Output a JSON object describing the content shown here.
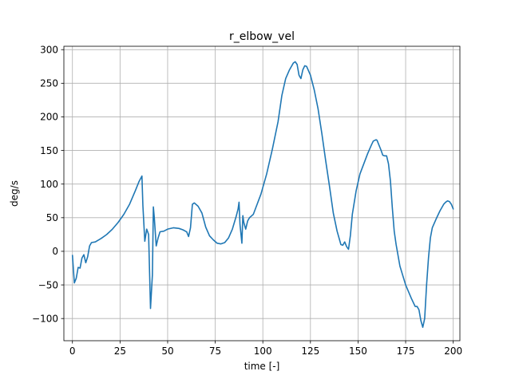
{
  "chart_data": {
    "type": "line",
    "title": "r_elbow_vel",
    "xlabel": "time [-]",
    "ylabel": "deg/s",
    "xlim": [
      -4.5,
      203.5
    ],
    "ylim": [
      -133,
      305
    ],
    "xticks": [
      0,
      25,
      50,
      75,
      100,
      125,
      150,
      175,
      200
    ],
    "yticks": [
      -100,
      -50,
      0,
      50,
      100,
      150,
      200,
      250,
      300
    ],
    "xtick_labels": [
      "0",
      "25",
      "50",
      "75",
      "100",
      "125",
      "150",
      "175",
      "200"
    ],
    "ytick_labels": [
      "−100",
      "−50",
      "0",
      "50",
      "100",
      "150",
      "200",
      "250",
      "300"
    ],
    "grid": true,
    "series": [
      {
        "color": "#1f77b4",
        "points": [
          [
            0,
            -6
          ],
          [
            1,
            -47
          ],
          [
            2,
            -40
          ],
          [
            3,
            -24
          ],
          [
            4,
            -25
          ],
          [
            5,
            -10
          ],
          [
            6,
            -5
          ],
          [
            7,
            -17
          ],
          [
            8,
            -8
          ],
          [
            9,
            8
          ],
          [
            10,
            13
          ],
          [
            12,
            14
          ],
          [
            15,
            19
          ],
          [
            18,
            25
          ],
          [
            21,
            33
          ],
          [
            24,
            43
          ],
          [
            27,
            55
          ],
          [
            30,
            70
          ],
          [
            33,
            90
          ],
          [
            35,
            104
          ],
          [
            36.5,
            112
          ],
          [
            37,
            68
          ],
          [
            38,
            15
          ],
          [
            39,
            33
          ],
          [
            40,
            25
          ],
          [
            41,
            -85
          ],
          [
            42,
            -35
          ],
          [
            42.5,
            66
          ],
          [
            43,
            50
          ],
          [
            44,
            8
          ],
          [
            45,
            20
          ],
          [
            46,
            29
          ],
          [
            48,
            30
          ],
          [
            50,
            33
          ],
          [
            53,
            35
          ],
          [
            56,
            34
          ],
          [
            58,
            32
          ],
          [
            60,
            29
          ],
          [
            61,
            22
          ],
          [
            62,
            35
          ],
          [
            63,
            70
          ],
          [
            64,
            72
          ],
          [
            66,
            67
          ],
          [
            68,
            57
          ],
          [
            70,
            36
          ],
          [
            72,
            23
          ],
          [
            74,
            17
          ],
          [
            76,
            12
          ],
          [
            78,
            11
          ],
          [
            80,
            13
          ],
          [
            82,
            20
          ],
          [
            84,
            33
          ],
          [
            86,
            52
          ],
          [
            87,
            63
          ],
          [
            87.5,
            73
          ],
          [
            88,
            40
          ],
          [
            89,
            12
          ],
          [
            89.5,
            53
          ],
          [
            90,
            43
          ],
          [
            91,
            33
          ],
          [
            92,
            45
          ],
          [
            93,
            50
          ],
          [
            95,
            55
          ],
          [
            97,
            70
          ],
          [
            99,
            85
          ],
          [
            102,
            115
          ],
          [
            105,
            152
          ],
          [
            108,
            193
          ],
          [
            110,
            232
          ],
          [
            112,
            257
          ],
          [
            114,
            270
          ],
          [
            116,
            280
          ],
          [
            117,
            282
          ],
          [
            118,
            278
          ],
          [
            119,
            262
          ],
          [
            120,
            257
          ],
          [
            121,
            270
          ],
          [
            122,
            276
          ],
          [
            123,
            275
          ],
          [
            125,
            262
          ],
          [
            127,
            240
          ],
          [
            129,
            212
          ],
          [
            131,
            175
          ],
          [
            133,
            135
          ],
          [
            135,
            97
          ],
          [
            137,
            57
          ],
          [
            139,
            30
          ],
          [
            141,
            10
          ],
          [
            142,
            9
          ],
          [
            143,
            14
          ],
          [
            144,
            7
          ],
          [
            145,
            3
          ],
          [
            146,
            24
          ],
          [
            147,
            55
          ],
          [
            149,
            90
          ],
          [
            151,
            115
          ],
          [
            153,
            130
          ],
          [
            155,
            145
          ],
          [
            157,
            158
          ],
          [
            158,
            164
          ],
          [
            159.5,
            166
          ],
          [
            160,
            165
          ],
          [
            162,
            151
          ],
          [
            163,
            143
          ],
          [
            164,
            142
          ],
          [
            165,
            142
          ],
          [
            166,
            130
          ],
          [
            167,
            105
          ],
          [
            168,
            65
          ],
          [
            169,
            30
          ],
          [
            170,
            10
          ],
          [
            172,
            -22
          ],
          [
            175,
            -50
          ],
          [
            178,
            -70
          ],
          [
            180,
            -82
          ],
          [
            181,
            -82
          ],
          [
            182,
            -87
          ],
          [
            183,
            -103
          ],
          [
            184,
            -113
          ],
          [
            185,
            -100
          ],
          [
            186,
            -50
          ],
          [
            187,
            -10
          ],
          [
            188,
            20
          ],
          [
            189,
            35
          ],
          [
            191,
            48
          ],
          [
            193,
            60
          ],
          [
            195,
            70
          ],
          [
            196,
            73
          ],
          [
            197,
            75
          ],
          [
            198,
            74
          ],
          [
            199,
            70
          ],
          [
            200,
            63
          ]
        ]
      }
    ]
  }
}
